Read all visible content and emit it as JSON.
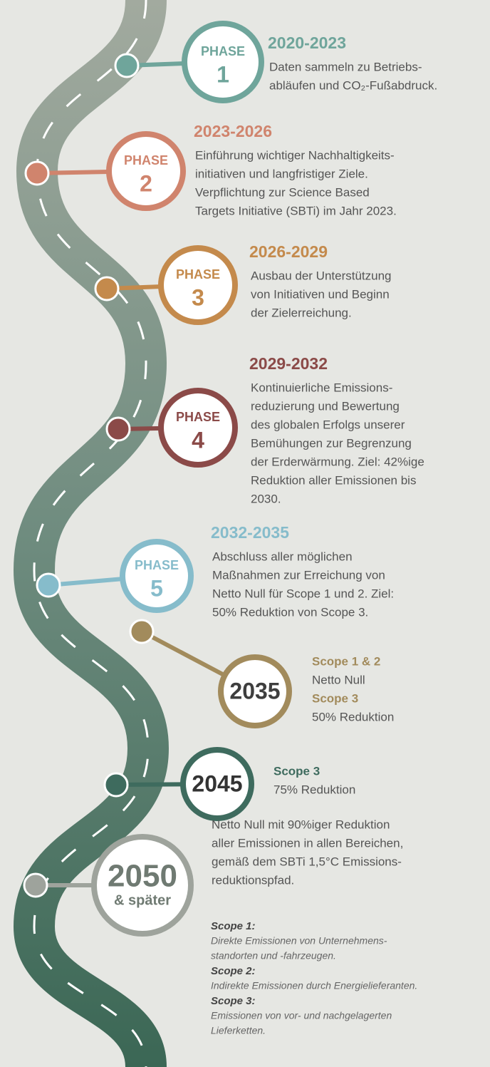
{
  "phases": [
    {
      "label": "PHASE",
      "number": "1",
      "years": "2020-2023",
      "lines": [
        "Daten sammeln zu Betriebs-",
        "abläufen und CO₂-Fußabdruck."
      ]
    },
    {
      "label": "PHASE",
      "number": "2",
      "years": "2023-2026",
      "lines": [
        "Einführung wichtiger Nachhaltigkeits-",
        "initiativen und langfristiger Ziele.",
        "Verpflichtung zur Science Based",
        "Targets Initiative (SBTi) im Jahr 2023."
      ]
    },
    {
      "label": "PHASE",
      "number": "3",
      "years": "2026-2029",
      "lines": [
        "Ausbau der Unterstützung",
        "von Initiativen und Beginn",
        "der Zielerreichung."
      ]
    },
    {
      "label": "PHASE",
      "number": "4",
      "years": "2029-2032",
      "lines": [
        "Kontinuierliche Emissions-",
        "reduzierung und Bewertung",
        "des globalen Erfolgs unserer",
        "Bemühungen zur Begrenzung",
        "der Erderwärmung. Ziel: 42%ige",
        "Reduktion aller Emissionen bis",
        "2030."
      ]
    },
    {
      "label": "PHASE",
      "number": "5",
      "years": "2032-2035",
      "lines": [
        "Abschluss aller möglichen",
        "Maßnahmen zur Erreichung von",
        "Netto Null für Scope 1 und 2. Ziel:",
        "50% Reduktion von Scope 3."
      ]
    }
  ],
  "milestones": [
    {
      "year": "2035",
      "lines": [
        "Scope 1 & 2",
        "Netto Null",
        "Scope 3",
        "50% Reduktion"
      ]
    },
    {
      "year": "2045",
      "lines": [
        "Scope 3",
        "75% Reduktion"
      ]
    },
    {
      "year": "2050",
      "suffix": "& später",
      "lines": [
        "Netto Null mit 90%iger Reduktion",
        "aller Emissionen in allen Bereichen,",
        "gemäß dem SBTi 1,5°C Emissions-",
        "reduktionspfad."
      ]
    }
  ],
  "footnotes": [
    {
      "term": "Scope 1:",
      "lines": [
        "Direkte Emissionen von Unternehmens-",
        "standorten und -fahrzeugen."
      ]
    },
    {
      "term": "Scope 2:",
      "lines": [
        "Indirekte Emissionen durch Energielieferanten."
      ]
    },
    {
      "term": "Scope 3:",
      "lines": [
        "Emissionen von vor- und nachgelagerten",
        "Lieferketten."
      ]
    }
  ]
}
